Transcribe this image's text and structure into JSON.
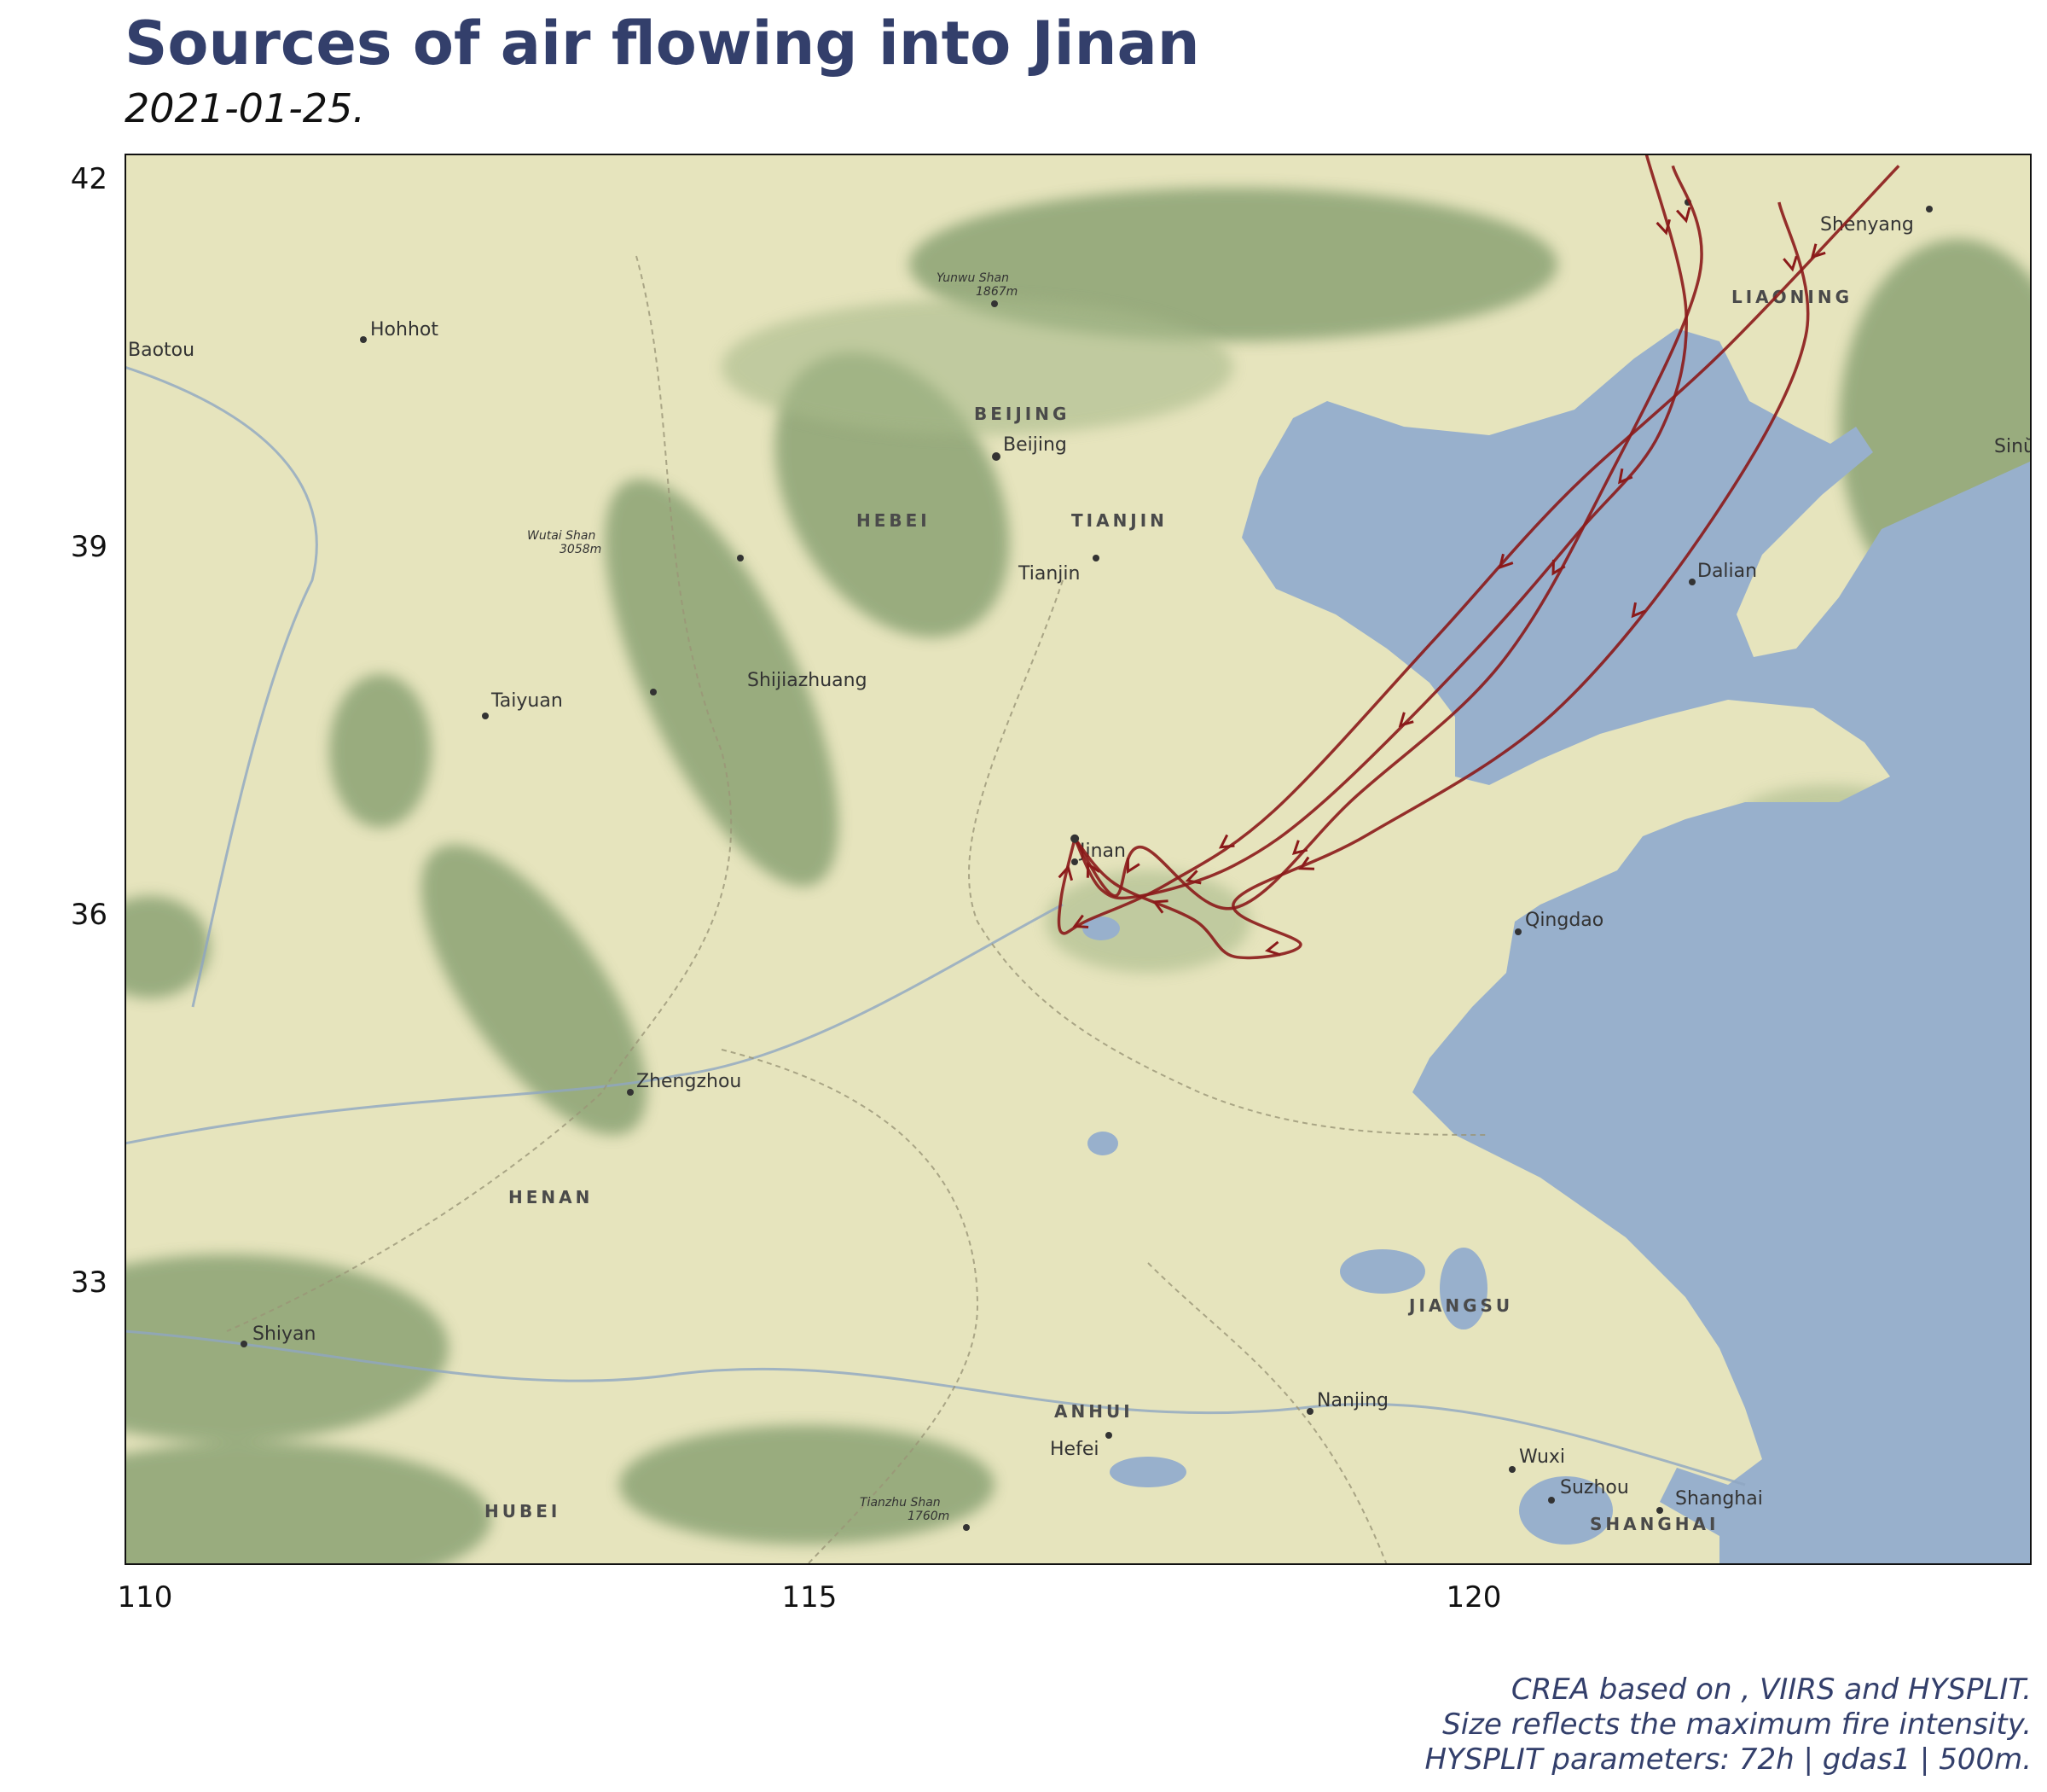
{
  "title": "Sources of air flowing into Jinan",
  "subtitle": "2021-01-25.",
  "axes": {
    "y_ticks": [
      "42",
      "39",
      "36",
      "33"
    ],
    "x_ticks": [
      "110",
      "115",
      "120"
    ]
  },
  "caption": {
    "line1": "CREA based on , VIIRS and HYSPLIT.",
    "line2": "Size reflects the maximum fire intensity.",
    "line3": "HYSPLIT parameters: 72h | gdas1 | 500m."
  },
  "map_labels": {
    "baotou": "Baotou",
    "hohhot": "Hohhot",
    "yunwu": "Yunwu Shan",
    "yunwu_h": "1867m",
    "beijing_region": "BEIJING",
    "beijing": "Beijing",
    "shenyang": "Shenyang",
    "liaoning": "LIAONING",
    "sinu": "Sinŭ",
    "wutai": "Wutai Shan",
    "wutai_h": "3058m",
    "hebei": "HEBEI",
    "tianjin_region": "TIANJIN",
    "tianjin": "Tianjin",
    "dalian": "Dalian",
    "shijiazhuang": "Shijiazhuang",
    "taiyuan": "Taiyuan",
    "jinan": "Jinan",
    "qingdao": "Qingdao",
    "zhengzhou": "Zhengzhou",
    "henan": "HENAN",
    "jiangsu": "JIANGSU",
    "shiyan": "Shiyan",
    "anhui": "ANHUI",
    "hefei": "Hefei",
    "nanjing": "Nanjing",
    "wuxi": "Wuxi",
    "suzhou": "Suzhou",
    "shanghai": "Shanghai",
    "shanghai_region": "SHANGHAI",
    "hubei": "HUBEI",
    "tianzhu": "Tianzhu Shan",
    "tianzhu_h": "1760m"
  },
  "colors": {
    "land": "#e6e4bd",
    "sea": "#98b0cc",
    "mountain": "#7f9a6a",
    "trajectory": "#8b1a1a",
    "title": "#333f6b"
  },
  "chart_data": {
    "type": "map",
    "title": "Sources of air flowing into Jinan",
    "subtitle": "2021-01-25.",
    "xlim": [
      109.85,
      124.2
    ],
    "ylim": [
      30.7,
      42.3
    ],
    "x_ticks": [
      110,
      115,
      120
    ],
    "y_ticks": [
      33,
      36,
      39,
      42
    ],
    "receptor": {
      "name": "Jinan",
      "lon": 117.0,
      "lat": 36.67
    },
    "trajectories": [
      {
        "points": [
          [
            121.3,
            42.3
          ],
          [
            121.6,
            41.0
          ],
          [
            121.4,
            40.0
          ],
          [
            120.8,
            39.2
          ],
          [
            120.0,
            38.2
          ],
          [
            118.9,
            37.0
          ],
          [
            118.2,
            36.45
          ],
          [
            117.5,
            36.2
          ],
          [
            117.2,
            36.25
          ],
          [
            117.0,
            36.67
          ]
        ]
      },
      {
        "points": [
          [
            121.5,
            42.2
          ],
          [
            121.7,
            41.3
          ],
          [
            121.0,
            39.6
          ],
          [
            120.2,
            38.1
          ],
          [
            119.1,
            37.0
          ],
          [
            118.2,
            36.1
          ],
          [
            117.5,
            36.6
          ],
          [
            117.3,
            36.2
          ],
          [
            117.0,
            36.67
          ]
        ]
      },
      {
        "points": [
          [
            123.2,
            42.2
          ],
          [
            121.9,
            40.7
          ],
          [
            120.7,
            39.5
          ],
          [
            119.7,
            38.3
          ],
          [
            118.5,
            36.9
          ],
          [
            117.7,
            36.3
          ],
          [
            117.1,
            36.0
          ],
          [
            116.9,
            35.9
          ],
          [
            116.9,
            36.2
          ],
          [
            117.0,
            36.67
          ]
        ]
      },
      {
        "points": [
          [
            122.3,
            41.9
          ],
          [
            122.5,
            40.8
          ],
          [
            121.8,
            39.3
          ],
          [
            120.6,
            37.7
          ],
          [
            119.2,
            36.7
          ],
          [
            118.2,
            36.15
          ],
          [
            118.7,
            35.8
          ],
          [
            118.2,
            35.7
          ],
          [
            117.9,
            36.0
          ],
          [
            117.3,
            36.3
          ],
          [
            117.0,
            36.67
          ]
        ]
      }
    ]
  }
}
